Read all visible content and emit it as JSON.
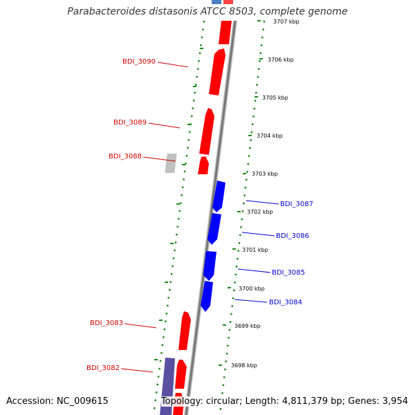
{
  "title": "Parabacteroides distasonis ATCC 8503, complete genome",
  "footer": {
    "accession": "Accession: NC_009615",
    "info": "Topology: circular; Length: 4,811,379 bp; Genes: 3,954"
  },
  "colors": {
    "forward_gene": "#ff0000",
    "reverse_gene": "#0000ff",
    "pseudo_gene": "#c0c0c0",
    "rna_gene": "#5a4fa0",
    "axis": "#888888",
    "track_dots": "#1a8a1a",
    "forward_label": "#cc0000",
    "reverse_label": "#0000cc"
  },
  "ticks": [
    "3707 kbp",
    "3706 kbp",
    "3705 kbp",
    "3704 kbp",
    "3703 kbp",
    "3702 kbp",
    "3701 kbp",
    "3700 kbp",
    "3699 kbp",
    "3698 kbp"
  ],
  "genes_forward": [
    "BDI_3090",
    "BDI_3089",
    "BDI_3088",
    "BDI_3083",
    "BDI_3082"
  ],
  "genes_reverse": [
    "BDI_3087",
    "BDI_3086",
    "BDI_3085",
    "BDI_3084"
  ]
}
